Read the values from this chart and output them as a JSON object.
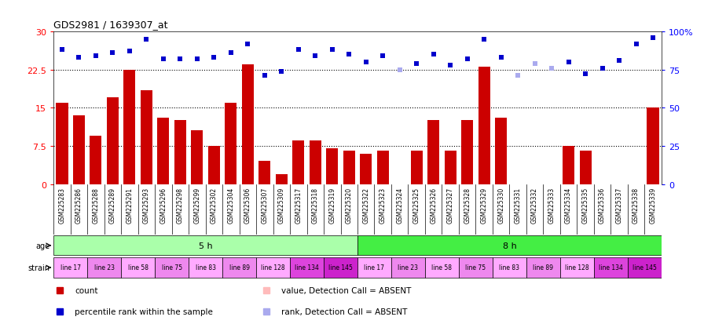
{
  "title": "GDS2981 / 1639307_at",
  "samples": [
    "GSM225283",
    "GSM225286",
    "GSM225288",
    "GSM225289",
    "GSM225291",
    "GSM225293",
    "GSM225296",
    "GSM225298",
    "GSM225299",
    "GSM225302",
    "GSM225304",
    "GSM225306",
    "GSM225307",
    "GSM225309",
    "GSM225317",
    "GSM225318",
    "GSM225319",
    "GSM225320",
    "GSM225322",
    "GSM225323",
    "GSM225324",
    "GSM225325",
    "GSM225326",
    "GSM225327",
    "GSM225328",
    "GSM225329",
    "GSM225330",
    "GSM225331",
    "GSM225332",
    "GSM225333",
    "GSM225334",
    "GSM225335",
    "GSM225336",
    "GSM225337",
    "GSM225338",
    "GSM225339"
  ],
  "count_values": [
    16,
    13.5,
    9.5,
    17,
    22.5,
    18.5,
    13,
    12.5,
    10.5,
    7.5,
    16,
    23.5,
    4.5,
    2,
    8.5,
    8.5,
    7,
    6.5,
    6,
    6.5,
    null,
    6.5,
    12.5,
    6.5,
    12.5,
    23,
    13,
    null,
    null,
    null,
    7.5,
    6.5,
    null,
    null,
    null,
    15
  ],
  "count_absent": [
    false,
    false,
    false,
    false,
    false,
    false,
    false,
    false,
    false,
    false,
    false,
    false,
    false,
    false,
    false,
    false,
    false,
    false,
    false,
    false,
    true,
    false,
    false,
    false,
    false,
    false,
    false,
    true,
    true,
    true,
    false,
    false,
    true,
    true,
    true,
    false
  ],
  "rank_values": [
    88,
    83,
    84,
    86,
    87,
    95,
    82,
    82,
    82,
    83,
    86,
    92,
    71,
    74,
    88,
    84,
    88,
    85,
    80,
    84,
    75,
    79,
    85,
    78,
    82,
    95,
    83,
    71,
    79,
    76,
    80,
    72,
    76,
    81,
    92,
    96
  ],
  "rank_absent": [
    false,
    false,
    false,
    false,
    false,
    false,
    false,
    false,
    false,
    false,
    false,
    false,
    false,
    false,
    false,
    false,
    false,
    false,
    false,
    false,
    true,
    false,
    false,
    false,
    false,
    false,
    false,
    true,
    true,
    true,
    false,
    false,
    false,
    false,
    false,
    false
  ],
  "age_groups": [
    {
      "label": "5 h",
      "start": 0,
      "end": 18,
      "color": "#aaffaa"
    },
    {
      "label": "8 h",
      "start": 18,
      "end": 36,
      "color": "#44ee44"
    }
  ],
  "strain_groups": [
    {
      "label": "line 17",
      "start": 0,
      "end": 2,
      "color": "#ffaaff"
    },
    {
      "label": "line 23",
      "start": 2,
      "end": 4,
      "color": "#ee88ee"
    },
    {
      "label": "line 58",
      "start": 4,
      "end": 6,
      "color": "#ffaaff"
    },
    {
      "label": "line 75",
      "start": 6,
      "end": 8,
      "color": "#ee88ee"
    },
    {
      "label": "line 83",
      "start": 8,
      "end": 10,
      "color": "#ffaaff"
    },
    {
      "label": "line 89",
      "start": 10,
      "end": 12,
      "color": "#ee88ee"
    },
    {
      "label": "line 128",
      "start": 12,
      "end": 14,
      "color": "#ffaaff"
    },
    {
      "label": "line 134",
      "start": 14,
      "end": 16,
      "color": "#dd44dd"
    },
    {
      "label": "line 145",
      "start": 16,
      "end": 18,
      "color": "#cc22cc"
    },
    {
      "label": "line 17",
      "start": 18,
      "end": 20,
      "color": "#ffaaff"
    },
    {
      "label": "line 23",
      "start": 20,
      "end": 22,
      "color": "#ee88ee"
    },
    {
      "label": "line 58",
      "start": 22,
      "end": 24,
      "color": "#ffaaff"
    },
    {
      "label": "line 75",
      "start": 24,
      "end": 26,
      "color": "#ee88ee"
    },
    {
      "label": "line 83",
      "start": 26,
      "end": 28,
      "color": "#ffaaff"
    },
    {
      "label": "line 89",
      "start": 28,
      "end": 30,
      "color": "#ee88ee"
    },
    {
      "label": "line 128",
      "start": 30,
      "end": 32,
      "color": "#ffaaff"
    },
    {
      "label": "line 134",
      "start": 32,
      "end": 34,
      "color": "#dd44dd"
    },
    {
      "label": "line 145",
      "start": 34,
      "end": 36,
      "color": "#cc22cc"
    }
  ],
  "ylim_left": [
    0,
    30
  ],
  "ylim_right": [
    0,
    100
  ],
  "yticks_left": [
    0,
    7.5,
    15,
    22.5,
    30
  ],
  "yticks_right": [
    0,
    25,
    50,
    75,
    100
  ],
  "ytick_labels_right": [
    "0",
    "25",
    "50",
    "75",
    "100%"
  ],
  "bar_color": "#cc0000",
  "bar_absent_color": "#ffbbbb",
  "rank_color": "#0000cc",
  "rank_absent_color": "#aaaaee",
  "plot_bg": "#ffffff",
  "tick_area_color": "#cccccc",
  "legend_items": [
    {
      "color": "#cc0000",
      "label": "count"
    },
    {
      "color": "#0000cc",
      "label": "percentile rank within the sample"
    },
    {
      "color": "#ffbbbb",
      "label": "value, Detection Call = ABSENT"
    },
    {
      "color": "#aaaaee",
      "label": "rank, Detection Call = ABSENT"
    }
  ]
}
